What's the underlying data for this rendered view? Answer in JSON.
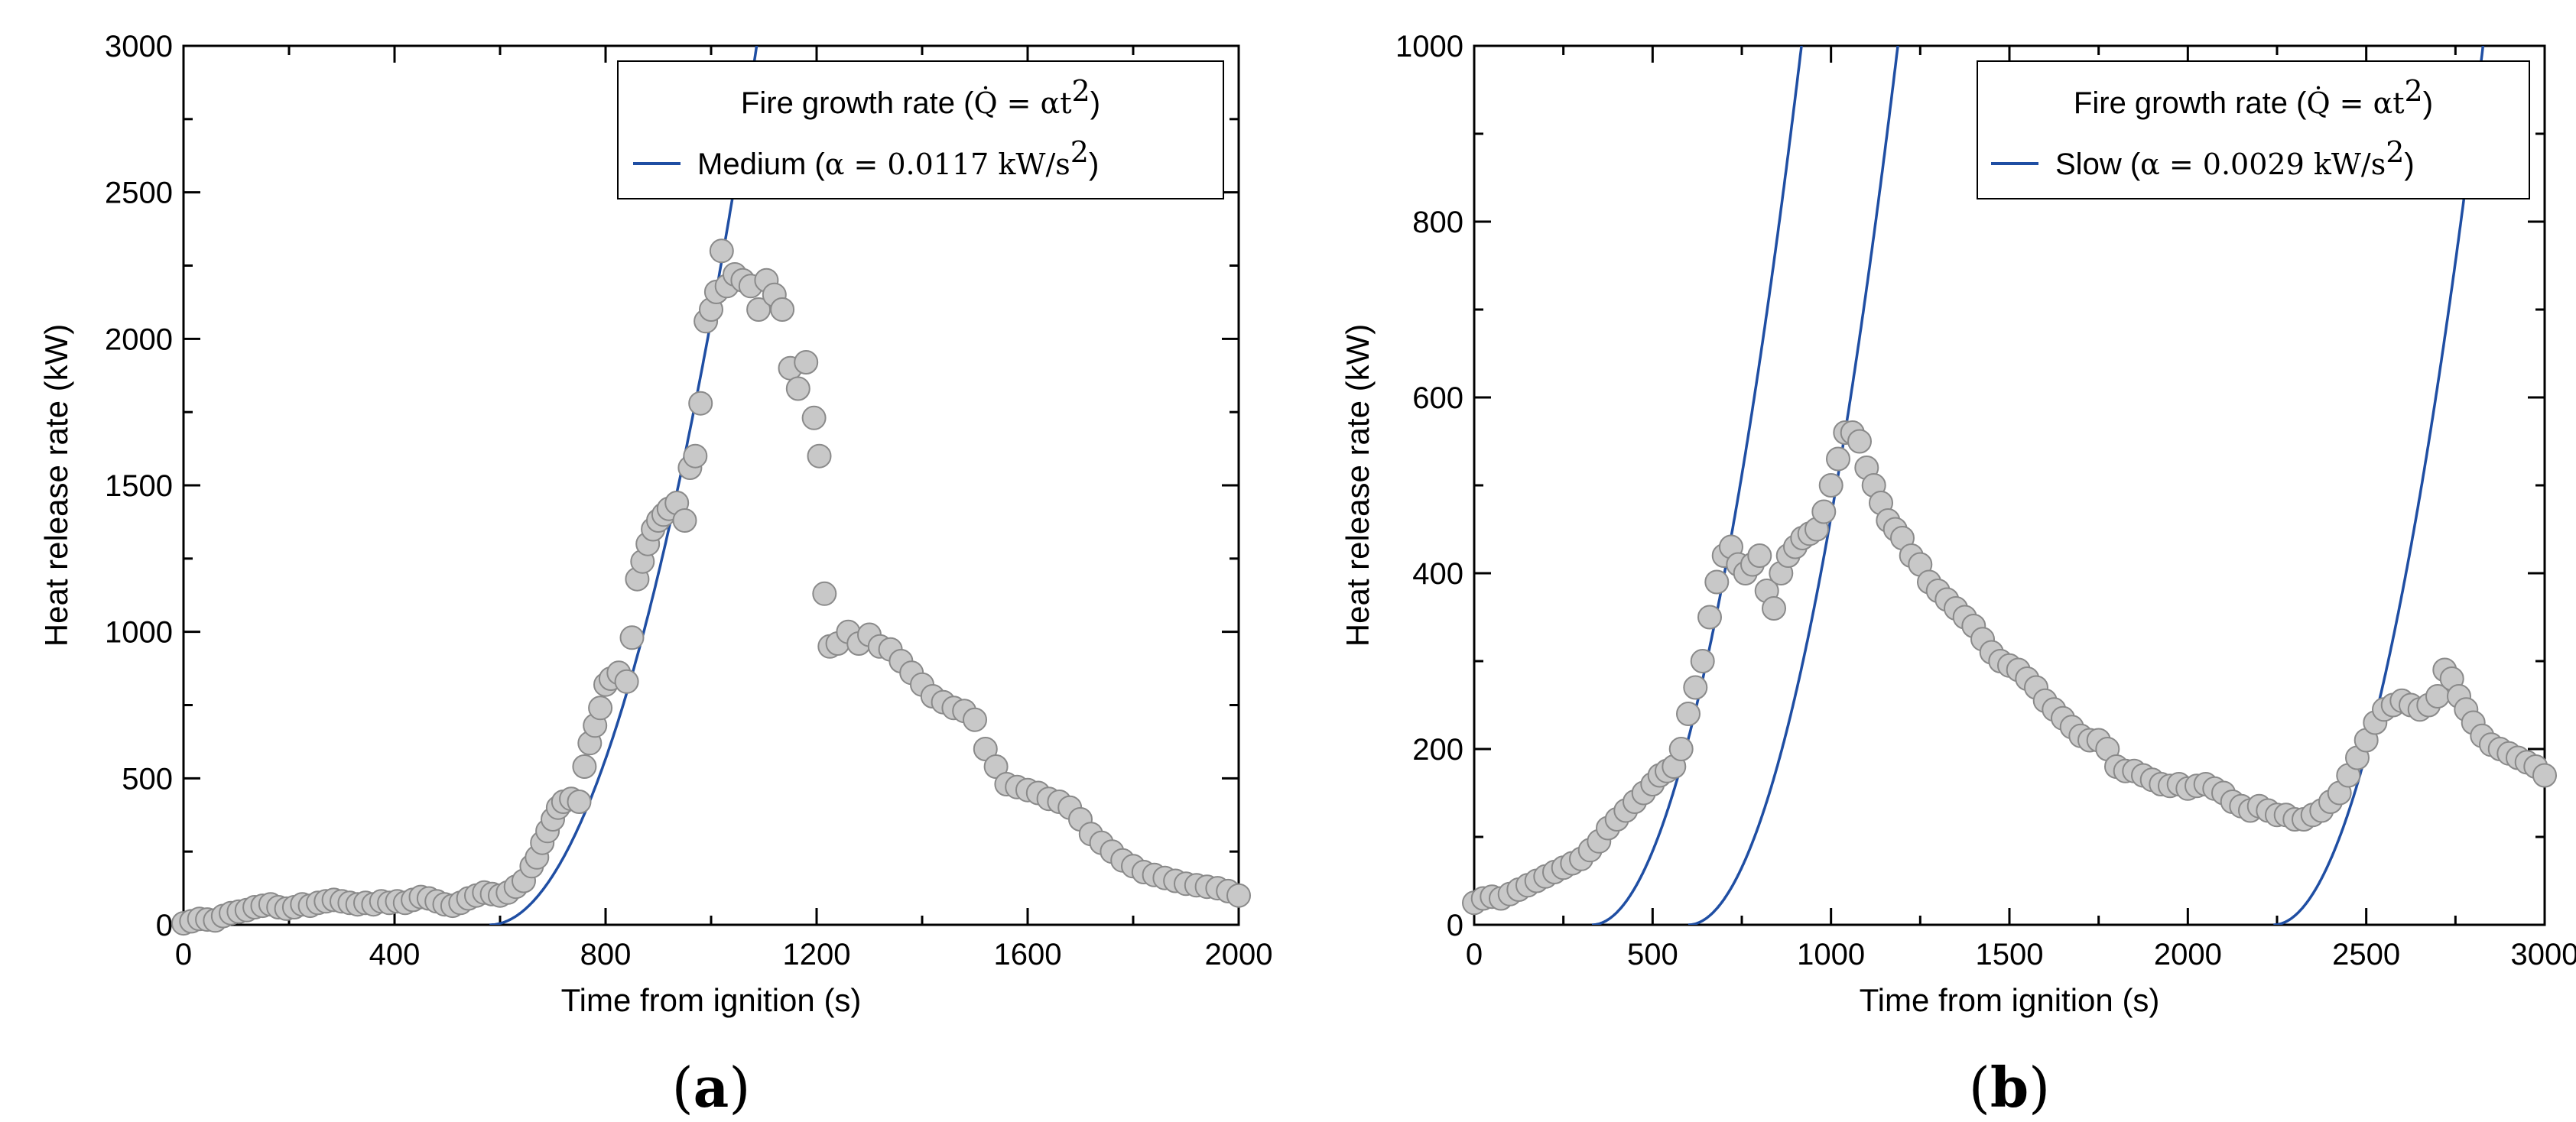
{
  "colors": {
    "curve": "#1f4ea3",
    "points_fill": "#c8c8c8",
    "points_stroke": "#8a8a8a"
  },
  "panels": {
    "a": {
      "label": "a",
      "legend_title_prefix": "Fire growth rate (",
      "legend_title_formula": "Q̇ = αt",
      "legend_title_sup": "2",
      "legend_title_suffix": ")",
      "legend_entry_name": "Medium (",
      "legend_entry_formula": "α = 0.0117 kW/s",
      "legend_entry_sup": "2",
      "legend_entry_suffix": ")"
    },
    "b": {
      "label": "b",
      "legend_title_prefix": "Fire growth rate (",
      "legend_title_formula": "Q̇ = αt",
      "legend_title_sup": "2",
      "legend_title_suffix": ")",
      "legend_entry_name": "Slow (",
      "legend_entry_formula": "α = 0.0029 kW/s",
      "legend_entry_sup": "2",
      "legend_entry_suffix": ")"
    }
  },
  "chart_data": [
    {
      "type": "scatter",
      "title": "",
      "xlabel": "Time from ignition (s)",
      "ylabel": "Heat release rate (kW)",
      "xlim": [
        0,
        2000
      ],
      "ylim": [
        0,
        3000
      ],
      "xticks": [
        0,
        400,
        800,
        1200,
        1600,
        2000
      ],
      "yticks": [
        0,
        500,
        1000,
        1500,
        2000,
        2500,
        3000
      ],
      "x_minor_step": 200,
      "y_minor_step": 250,
      "legend_position": "top-right",
      "curves": [
        {
          "name": "Medium (α = 0.0117 kW/s²)",
          "alpha": 0.0117,
          "t0": 580
        }
      ],
      "points": [
        [
          0,
          5
        ],
        [
          15,
          12
        ],
        [
          30,
          20
        ],
        [
          45,
          18
        ],
        [
          60,
          15
        ],
        [
          75,
          30
        ],
        [
          90,
          40
        ],
        [
          105,
          45
        ],
        [
          120,
          50
        ],
        [
          135,
          60
        ],
        [
          150,
          65
        ],
        [
          165,
          70
        ],
        [
          180,
          60
        ],
        [
          195,
          55
        ],
        [
          210,
          60
        ],
        [
          225,
          70
        ],
        [
          240,
          65
        ],
        [
          255,
          75
        ],
        [
          270,
          80
        ],
        [
          285,
          85
        ],
        [
          300,
          80
        ],
        [
          315,
          75
        ],
        [
          330,
          70
        ],
        [
          345,
          75
        ],
        [
          360,
          70
        ],
        [
          375,
          80
        ],
        [
          390,
          75
        ],
        [
          405,
          80
        ],
        [
          420,
          75
        ],
        [
          435,
          85
        ],
        [
          450,
          95
        ],
        [
          465,
          90
        ],
        [
          480,
          80
        ],
        [
          495,
          70
        ],
        [
          510,
          65
        ],
        [
          525,
          75
        ],
        [
          540,
          90
        ],
        [
          555,
          100
        ],
        [
          570,
          110
        ],
        [
          585,
          105
        ],
        [
          600,
          100
        ],
        [
          615,
          110
        ],
        [
          630,
          130
        ],
        [
          645,
          150
        ],
        [
          660,
          200
        ],
        [
          670,
          230
        ],
        [
          680,
          280
        ],
        [
          690,
          320
        ],
        [
          700,
          360
        ],
        [
          710,
          400
        ],
        [
          720,
          420
        ],
        [
          735,
          430
        ],
        [
          750,
          420
        ],
        [
          760,
          540
        ],
        [
          770,
          620
        ],
        [
          780,
          680
        ],
        [
          790,
          740
        ],
        [
          800,
          820
        ],
        [
          810,
          840
        ],
        [
          825,
          860
        ],
        [
          840,
          830
        ],
        [
          850,
          980
        ],
        [
          860,
          1180
        ],
        [
          870,
          1240
        ],
        [
          880,
          1300
        ],
        [
          890,
          1350
        ],
        [
          900,
          1380
        ],
        [
          910,
          1400
        ],
        [
          920,
          1420
        ],
        [
          935,
          1440
        ],
        [
          950,
          1380
        ],
        [
          960,
          1560
        ],
        [
          970,
          1600
        ],
        [
          980,
          1780
        ],
        [
          990,
          2060
        ],
        [
          1000,
          2100
        ],
        [
          1010,
          2160
        ],
        [
          1020,
          2300
        ],
        [
          1030,
          2180
        ],
        [
          1045,
          2220
        ],
        [
          1060,
          2200
        ],
        [
          1075,
          2180
        ],
        [
          1090,
          2100
        ],
        [
          1105,
          2200
        ],
        [
          1120,
          2150
        ],
        [
          1135,
          2100
        ],
        [
          1150,
          1900
        ],
        [
          1165,
          1830
        ],
        [
          1180,
          1920
        ],
        [
          1195,
          1730
        ],
        [
          1205,
          1600
        ],
        [
          1215,
          1130
        ],
        [
          1225,
          950
        ],
        [
          1240,
          960
        ],
        [
          1260,
          1000
        ],
        [
          1280,
          960
        ],
        [
          1300,
          990
        ],
        [
          1320,
          950
        ],
        [
          1340,
          940
        ],
        [
          1360,
          900
        ],
        [
          1380,
          860
        ],
        [
          1400,
          820
        ],
        [
          1420,
          780
        ],
        [
          1440,
          760
        ],
        [
          1460,
          740
        ],
        [
          1480,
          730
        ],
        [
          1500,
          700
        ],
        [
          1520,
          600
        ],
        [
          1540,
          540
        ],
        [
          1560,
          480
        ],
        [
          1580,
          470
        ],
        [
          1600,
          460
        ],
        [
          1620,
          450
        ],
        [
          1640,
          430
        ],
        [
          1660,
          420
        ],
        [
          1680,
          400
        ],
        [
          1700,
          360
        ],
        [
          1720,
          310
        ],
        [
          1740,
          280
        ],
        [
          1760,
          250
        ],
        [
          1780,
          220
        ],
        [
          1800,
          200
        ],
        [
          1820,
          180
        ],
        [
          1840,
          170
        ],
        [
          1860,
          160
        ],
        [
          1880,
          150
        ],
        [
          1900,
          140
        ],
        [
          1920,
          135
        ],
        [
          1940,
          130
        ],
        [
          1960,
          125
        ],
        [
          1980,
          115
        ],
        [
          2000,
          100
        ]
      ]
    },
    {
      "type": "scatter",
      "title": "",
      "xlabel": "Time from ignition (s)",
      "ylabel": "Heat release rate (kW)",
      "xlim": [
        0,
        3000
      ],
      "ylim": [
        0,
        1000
      ],
      "xticks": [
        0,
        500,
        1000,
        1500,
        2000,
        2500,
        3000
      ],
      "yticks": [
        0,
        200,
        400,
        600,
        800,
        1000
      ],
      "x_minor_step": 250,
      "y_minor_step": 100,
      "legend_position": "top-right",
      "curves": [
        {
          "name": "Slow (α = 0.0029 kW/s²)",
          "alpha": 0.0029,
          "t0": 330
        },
        {
          "name": "Slow (α = 0.0029 kW/s²)",
          "alpha": 0.0029,
          "t0": 600
        },
        {
          "name": "Slow (α = 0.0029 kW/s²)",
          "alpha": 0.0029,
          "t0": 2240
        }
      ],
      "points": [
        [
          0,
          25
        ],
        [
          25,
          30
        ],
        [
          50,
          32
        ],
        [
          75,
          30
        ],
        [
          100,
          35
        ],
        [
          125,
          40
        ],
        [
          150,
          45
        ],
        [
          175,
          50
        ],
        [
          200,
          55
        ],
        [
          225,
          60
        ],
        [
          250,
          65
        ],
        [
          275,
          70
        ],
        [
          300,
          75
        ],
        [
          325,
          85
        ],
        [
          350,
          95
        ],
        [
          375,
          110
        ],
        [
          400,
          120
        ],
        [
          425,
          130
        ],
        [
          450,
          140
        ],
        [
          475,
          150
        ],
        [
          500,
          160
        ],
        [
          520,
          170
        ],
        [
          540,
          175
        ],
        [
          560,
          180
        ],
        [
          580,
          200
        ],
        [
          600,
          240
        ],
        [
          620,
          270
        ],
        [
          640,
          300
        ],
        [
          660,
          350
        ],
        [
          680,
          390
        ],
        [
          700,
          420
        ],
        [
          720,
          430
        ],
        [
          740,
          410
        ],
        [
          760,
          400
        ],
        [
          780,
          410
        ],
        [
          800,
          420
        ],
        [
          820,
          380
        ],
        [
          840,
          360
        ],
        [
          860,
          400
        ],
        [
          880,
          420
        ],
        [
          900,
          430
        ],
        [
          920,
          440
        ],
        [
          940,
          445
        ],
        [
          960,
          450
        ],
        [
          980,
          470
        ],
        [
          1000,
          500
        ],
        [
          1020,
          530
        ],
        [
          1040,
          560
        ],
        [
          1060,
          560
        ],
        [
          1080,
          550
        ],
        [
          1100,
          520
        ],
        [
          1120,
          500
        ],
        [
          1140,
          480
        ],
        [
          1160,
          460
        ],
        [
          1180,
          450
        ],
        [
          1200,
          440
        ],
        [
          1225,
          420
        ],
        [
          1250,
          410
        ],
        [
          1275,
          390
        ],
        [
          1300,
          380
        ],
        [
          1325,
          370
        ],
        [
          1350,
          360
        ],
        [
          1375,
          350
        ],
        [
          1400,
          340
        ],
        [
          1425,
          325
        ],
        [
          1450,
          310
        ],
        [
          1475,
          300
        ],
        [
          1500,
          295
        ],
        [
          1525,
          290
        ],
        [
          1550,
          280
        ],
        [
          1575,
          270
        ],
        [
          1600,
          255
        ],
        [
          1625,
          245
        ],
        [
          1650,
          235
        ],
        [
          1675,
          225
        ],
        [
          1700,
          215
        ],
        [
          1725,
          210
        ],
        [
          1750,
          210
        ],
        [
          1775,
          200
        ],
        [
          1800,
          180
        ],
        [
          1825,
          175
        ],
        [
          1850,
          175
        ],
        [
          1875,
          170
        ],
        [
          1900,
          165
        ],
        [
          1925,
          160
        ],
        [
          1950,
          158
        ],
        [
          1975,
          160
        ],
        [
          2000,
          155
        ],
        [
          2025,
          158
        ],
        [
          2050,
          160
        ],
        [
          2075,
          155
        ],
        [
          2100,
          150
        ],
        [
          2125,
          140
        ],
        [
          2150,
          135
        ],
        [
          2175,
          130
        ],
        [
          2200,
          135
        ],
        [
          2225,
          130
        ],
        [
          2250,
          125
        ],
        [
          2275,
          125
        ],
        [
          2300,
          120
        ],
        [
          2325,
          120
        ],
        [
          2350,
          125
        ],
        [
          2375,
          130
        ],
        [
          2400,
          140
        ],
        [
          2425,
          150
        ],
        [
          2450,
          170
        ],
        [
          2475,
          190
        ],
        [
          2500,
          210
        ],
        [
          2525,
          230
        ],
        [
          2550,
          245
        ],
        [
          2575,
          250
        ],
        [
          2600,
          255
        ],
        [
          2625,
          250
        ],
        [
          2650,
          245
        ],
        [
          2675,
          250
        ],
        [
          2700,
          260
        ],
        [
          2720,
          290
        ],
        [
          2740,
          280
        ],
        [
          2760,
          260
        ],
        [
          2780,
          245
        ],
        [
          2800,
          230
        ],
        [
          2825,
          215
        ],
        [
          2850,
          205
        ],
        [
          2875,
          200
        ],
        [
          2900,
          195
        ],
        [
          2925,
          190
        ],
        [
          2950,
          185
        ],
        [
          2975,
          180
        ],
        [
          3000,
          170
        ]
      ]
    }
  ]
}
